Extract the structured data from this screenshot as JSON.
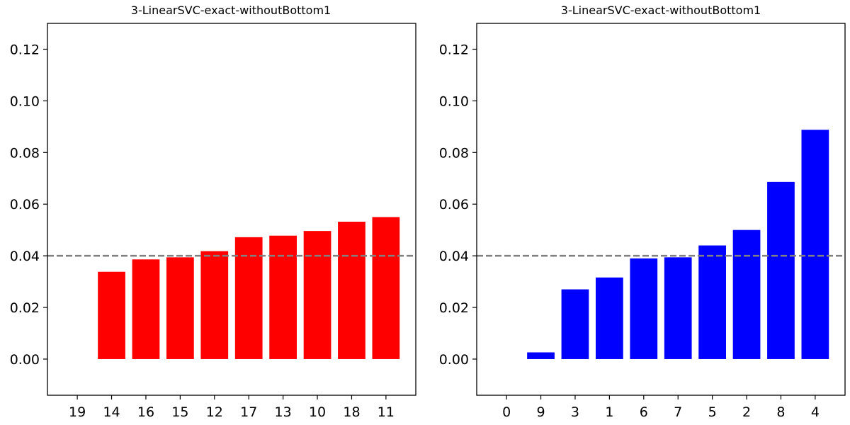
{
  "chart_data": [
    {
      "type": "bar",
      "title": "3-LinearSVC-exact-withoutBottom1",
      "xlabel": "",
      "ylabel": "",
      "categories": [
        "19",
        "14",
        "16",
        "15",
        "12",
        "17",
        "13",
        "10",
        "18",
        "11"
      ],
      "values": [
        0.0,
        0.0338,
        0.0386,
        0.0394,
        0.0418,
        0.0472,
        0.0478,
        0.0496,
        0.0532,
        0.055
      ],
      "color": "#ff0000",
      "ylim": [
        -0.014,
        0.13
      ],
      "yticks": [
        "0.00",
        "0.02",
        "0.04",
        "0.06",
        "0.08",
        "0.10",
        "0.12"
      ],
      "ytick_values": [
        0.0,
        0.02,
        0.04,
        0.06,
        0.08,
        0.1,
        0.12
      ],
      "reference_line": {
        "y": 0.04,
        "color": "#808080",
        "style": "dashed"
      },
      "grid": false,
      "legend": "none"
    },
    {
      "type": "bar",
      "title": "3-LinearSVC-exact-withoutBottom1",
      "xlabel": "",
      "ylabel": "",
      "categories": [
        "0",
        "9",
        "3",
        "1",
        "6",
        "7",
        "5",
        "2",
        "8",
        "4"
      ],
      "values": [
        0.0,
        0.0026,
        0.027,
        0.0316,
        0.039,
        0.0394,
        0.044,
        0.05,
        0.0686,
        0.0888
      ],
      "color": "#0000ff",
      "ylim": [
        -0.014,
        0.13
      ],
      "yticks": [
        "0.00",
        "0.02",
        "0.04",
        "0.06",
        "0.08",
        "0.10",
        "0.12"
      ],
      "ytick_values": [
        0.0,
        0.02,
        0.04,
        0.06,
        0.08,
        0.1,
        0.12
      ],
      "reference_line": {
        "y": 0.04,
        "color": "#808080",
        "style": "dashed"
      },
      "grid": false,
      "legend": "none"
    }
  ]
}
